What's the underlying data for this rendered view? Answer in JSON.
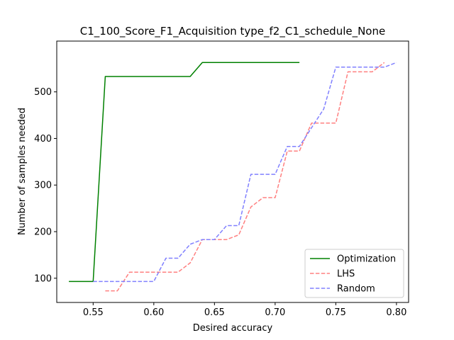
{
  "chart_data": {
    "type": "line",
    "title": "C1_100_Score_F1_Acquisition type_f2_C1_schedule_None",
    "xlabel": "Desired accuracy",
    "ylabel": "Number of samples needed",
    "xlim": [
      0.52,
      0.81
    ],
    "ylim": [
      48,
      609
    ],
    "xticks": [
      0.55,
      0.6,
      0.65,
      0.7,
      0.75,
      0.8
    ],
    "xtick_labels": [
      "0.55",
      "0.60",
      "0.65",
      "0.70",
      "0.75",
      "0.80"
    ],
    "yticks": [
      100,
      200,
      300,
      400,
      500
    ],
    "ytick_labels": [
      "100",
      "200",
      "300",
      "400",
      "500"
    ],
    "grid": false,
    "legend_position": "bottom-right",
    "series": [
      {
        "name": "Optimization",
        "color": "#008000",
        "style": "solid",
        "x": [
          0.53,
          0.55,
          0.56,
          0.63,
          0.64,
          0.72
        ],
        "y": [
          93,
          93,
          533,
          533,
          563,
          563
        ]
      },
      {
        "name": "LHS",
        "color": "#ff8080",
        "style": "dashed",
        "x": [
          0.56,
          0.57,
          0.58,
          0.62,
          0.63,
          0.64,
          0.66,
          0.67,
          0.68,
          0.69,
          0.7,
          0.71,
          0.72,
          0.73,
          0.75,
          0.76,
          0.78,
          0.79
        ],
        "y": [
          73,
          73,
          113,
          113,
          133,
          183,
          183,
          193,
          253,
          273,
          273,
          373,
          373,
          433,
          433,
          543,
          543,
          563
        ]
      },
      {
        "name": "Random",
        "color": "#8080ff",
        "style": "dashed",
        "x": [
          0.55,
          0.6,
          0.61,
          0.62,
          0.63,
          0.64,
          0.65,
          0.66,
          0.67,
          0.68,
          0.7,
          0.71,
          0.72,
          0.74,
          0.75,
          0.79,
          0.8
        ],
        "y": [
          93,
          93,
          143,
          143,
          173,
          183,
          183,
          213,
          213,
          323,
          323,
          383,
          383,
          463,
          553,
          553,
          563
        ]
      }
    ]
  }
}
